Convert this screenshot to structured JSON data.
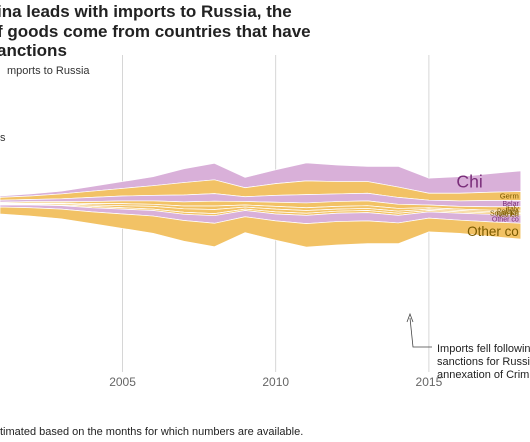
{
  "title_lines": [
    "ina leads with imports to Russia, the",
    "f goods come from countries that have",
    "anctions"
  ],
  "subtitle": "mports to Russia",
  "ylabel_fragment": "s",
  "footnote": "timated based on the months for which numbers are available.",
  "annotation_lines": [
    "Imports fell followin",
    "sanctions for Russi",
    "annexation of Crim"
  ],
  "colors": {
    "sanctioning": "#f2c265",
    "non_sanctioning": "#d9b0d9",
    "label_dark": "#7a2e7a",
    "label_gold": "#7a5a00",
    "grid": "#cccccc"
  },
  "chart_data": {
    "type": "area",
    "layout": "streamgraph",
    "x": [
      2001,
      2002,
      2003,
      2004,
      2005,
      2006,
      2007,
      2008,
      2009,
      2010,
      2011,
      2012,
      2013,
      2014,
      2015,
      2016,
      2017,
      2018
    ],
    "x_ticks": [
      2005,
      2010,
      2015
    ],
    "series": [
      {
        "name": "Chi",
        "color": "non_sanctioning",
        "values": [
          2,
          3,
          4,
          7,
          10,
          13,
          20,
          24,
          15,
          20,
          26,
          24,
          22,
          30,
          22,
          24,
          27,
          30
        ]
      },
      {
        "name": "Germ",
        "color": "sanctioning",
        "values": [
          4,
          5,
          7,
          9,
          11,
          14,
          18,
          20,
          13,
          17,
          20,
          18,
          17,
          15,
          10,
          11,
          12,
          13
        ]
      },
      {
        "name": "Belar",
        "color": "non_sanctioning",
        "values": [
          3,
          3,
          4,
          6,
          7,
          8,
          10,
          11,
          7,
          10,
          12,
          11,
          11,
          10,
          7,
          8,
          9,
          9
        ]
      },
      {
        "name": "Italy",
        "color": "sanctioning",
        "values": [
          1,
          2,
          2,
          3,
          4,
          5,
          6,
          7,
          5,
          6,
          7,
          7,
          7,
          6,
          4,
          4,
          5,
          5
        ]
      },
      {
        "name": "Polano",
        "color": "sanctioning",
        "values": [
          1,
          1,
          1,
          2,
          3,
          3,
          4,
          5,
          3,
          4,
          4,
          4,
          4,
          4,
          2,
          2,
          2,
          3
        ]
      },
      {
        "name": "South Ko",
        "color": "sanctioning",
        "values": [
          1,
          1,
          2,
          2,
          3,
          4,
          5,
          6,
          3,
          4,
          4,
          3,
          3,
          3,
          2,
          2,
          2,
          2
        ]
      },
      {
        "name": "Netherl",
        "color": "sanctioning",
        "values": [
          1,
          1,
          1,
          2,
          2,
          2,
          3,
          3,
          2,
          3,
          3,
          3,
          3,
          3,
          2,
          2,
          2,
          2
        ]
      },
      {
        "name": "Other co",
        "color": "non_sanctioning",
        "values": [
          3,
          4,
          5,
          6,
          7,
          8,
          9,
          11,
          9,
          10,
          12,
          12,
          12,
          11,
          9,
          10,
          11,
          12
        ]
      },
      {
        "name": "Other co",
        "color": "sanctioning",
        "values": [
          10,
          12,
          14,
          17,
          21,
          25,
          30,
          34,
          23,
          28,
          34,
          34,
          33,
          30,
          20,
          19,
          21,
          23
        ]
      }
    ]
  }
}
